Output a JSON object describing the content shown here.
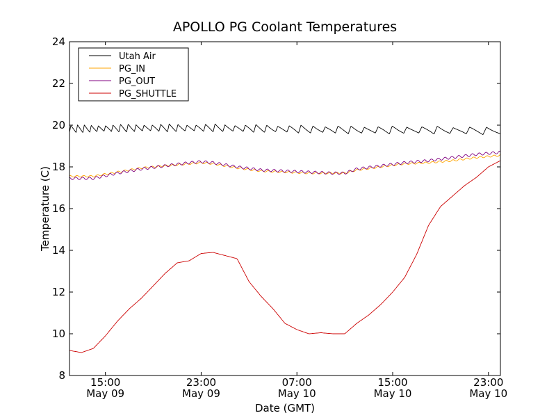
{
  "chart_data": {
    "type": "line",
    "title": "APOLLO PG Coolant Temperatures",
    "xlabel": "Date (GMT)",
    "ylabel": "Temperature (C)",
    "xlim_hours": [
      0,
      36
    ],
    "ylim": [
      8,
      24
    ],
    "yticks": [
      8,
      10,
      12,
      14,
      16,
      18,
      20,
      22,
      24
    ],
    "xticks": [
      {
        "hour": 3,
        "time": "15:00",
        "date": "May 09"
      },
      {
        "hour": 11,
        "time": "23:00",
        "date": "May 09"
      },
      {
        "hour": 19,
        "time": "07:00",
        "date": "May 10"
      },
      {
        "hour": 27,
        "time": "15:00",
        "date": "May 10"
      },
      {
        "hour": 35,
        "time": "23:00",
        "date": "May 10"
      }
    ],
    "legend_position": "top-left",
    "series": [
      {
        "name": "Utah Air",
        "color": "#000000",
        "description": "oscillating around 19.8 C",
        "hours": [
          0,
          6,
          12,
          18,
          24,
          30,
          36
        ],
        "values": [
          19.8,
          19.85,
          19.85,
          19.8,
          19.75,
          19.75,
          19.7
        ]
      },
      {
        "name": "PG_IN",
        "color": "#ffa500",
        "hours": [
          0,
          2,
          4,
          6,
          8,
          10,
          11,
          12,
          14,
          16,
          18,
          20,
          22,
          23,
          24,
          26,
          28,
          30,
          32,
          34,
          36
        ],
        "values": [
          17.55,
          17.55,
          17.75,
          17.95,
          18.05,
          18.15,
          18.2,
          18.15,
          17.95,
          17.8,
          17.75,
          17.7,
          17.7,
          17.7,
          17.85,
          18.0,
          18.15,
          18.2,
          18.3,
          18.45,
          18.55
        ]
      },
      {
        "name": "PG_OUT",
        "color": "#800080",
        "hours": [
          0,
          2,
          4,
          6,
          8,
          10,
          11,
          12,
          14,
          16,
          18,
          20,
          22,
          23,
          24,
          26,
          28,
          30,
          32,
          34,
          36
        ],
        "values": [
          17.45,
          17.45,
          17.7,
          17.9,
          18.05,
          18.2,
          18.25,
          18.2,
          18.0,
          17.85,
          17.8,
          17.75,
          17.7,
          17.7,
          17.9,
          18.05,
          18.2,
          18.3,
          18.45,
          18.6,
          18.7
        ]
      },
      {
        "name": "PG_SHUTTLE",
        "color": "#cc0000",
        "hours": [
          0,
          1,
          2,
          3,
          4,
          5,
          6,
          7,
          8,
          9,
          10,
          11,
          12,
          13,
          14,
          15,
          16,
          17,
          18,
          19,
          20,
          21,
          22,
          23,
          24,
          25,
          26,
          27,
          28,
          29,
          30,
          31,
          32,
          33,
          34,
          35,
          36
        ],
        "values": [
          9.2,
          9.1,
          9.3,
          9.9,
          10.6,
          11.2,
          11.7,
          12.3,
          12.9,
          13.4,
          13.5,
          13.85,
          13.9,
          13.75,
          13.6,
          12.5,
          11.8,
          11.2,
          10.5,
          10.2,
          10.0,
          10.05,
          10.0,
          10.0,
          10.5,
          10.9,
          11.4,
          12.0,
          12.7,
          13.8,
          15.2,
          16.1,
          16.6,
          17.1,
          17.5,
          18.0,
          18.3
        ]
      }
    ]
  }
}
